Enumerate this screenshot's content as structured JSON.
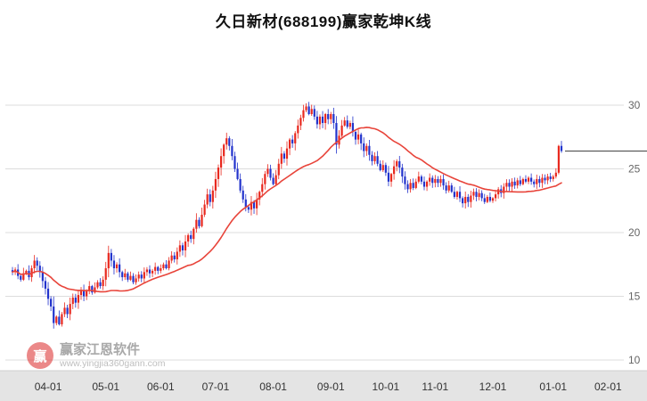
{
  "title": "久日新材(688199)赢家乾坤K线",
  "watermark": {
    "logo_char": "赢",
    "brand": "赢家江恩软件",
    "url": "www.yingjia360gann.com"
  },
  "colors": {
    "up": "#e8281e",
    "down": "#2233cc",
    "ma": "#e8443a",
    "grid": "#dcdcdc",
    "axis_text": "#666666",
    "xlabel_text": "#333333",
    "price_line": "#444444",
    "strip_bg": "#e4e4e4",
    "strip_border": "#cfcfcf",
    "title_text": "#111111"
  },
  "chart_data": {
    "type": "candlestick",
    "symbol": "久日新材",
    "code": "688199",
    "legend_position": "none",
    "grid": "horizontal",
    "ma_period": 30,
    "last_price": 26.4,
    "ylim": [
      10,
      32
    ],
    "y_ticks": [
      10,
      15,
      20,
      25,
      30
    ],
    "x_ticks": [
      {
        "label": "04-01",
        "i": 13
      },
      {
        "label": "05-01",
        "i": 34
      },
      {
        "label": "06-01",
        "i": 54
      },
      {
        "label": "07-01",
        "i": 74
      },
      {
        "label": "08-01",
        "i": 95
      },
      {
        "label": "09-01",
        "i": 116
      },
      {
        "label": "10-01",
        "i": 136
      },
      {
        "label": "11-01",
        "i": 154
      },
      {
        "label": "12-01",
        "i": 175
      },
      {
        "label": "01-01",
        "i": 197
      },
      {
        "label": "02-01",
        "i": 217
      }
    ],
    "closes": [
      16.9,
      17.1,
      16.6,
      16.3,
      16.8,
      17.0,
      16.5,
      17.2,
      17.8,
      17.4,
      16.9,
      16.2,
      15.6,
      14.8,
      14.2,
      12.9,
      13.4,
      12.8,
      13.6,
      14.1,
      13.6,
      14.4,
      14.9,
      14.5,
      15.1,
      15.5,
      15.0,
      15.4,
      15.8,
      15.3,
      15.7,
      16.1,
      15.8,
      16.3,
      17.2,
      18.4,
      17.8,
      17.2,
      17.5,
      16.9,
      16.5,
      16.8,
      16.3,
      16.6,
      16.1,
      16.4,
      16.7,
      16.4,
      16.9,
      17.1,
      16.8,
      17.0,
      17.3,
      17.0,
      17.2,
      17.5,
      17.2,
      17.8,
      18.2,
      17.9,
      18.5,
      19.0,
      18.6,
      19.3,
      19.8,
      19.5,
      20.3,
      21.0,
      20.5,
      21.4,
      22.2,
      23.0,
      22.4,
      23.3,
      24.2,
      25.1,
      26.0,
      26.9,
      27.4,
      26.8,
      26.0,
      25.0,
      24.2,
      23.3,
      22.6,
      22.0,
      21.8,
      22.4,
      21.9,
      22.6,
      23.2,
      23.8,
      24.6,
      25.0,
      24.3,
      23.8,
      24.5,
      25.4,
      26.2,
      25.8,
      26.6,
      27.3,
      27.0,
      27.8,
      28.4,
      29.0,
      29.6,
      29.9,
      29.3,
      29.7,
      29.1,
      28.5,
      29.1,
      28.6,
      29.3,
      28.9,
      29.3,
      28.6,
      26.9,
      27.6,
      28.4,
      28.8,
      28.3,
      28.6,
      27.9,
      27.3,
      27.7,
      27.0,
      26.4,
      26.8,
      26.1,
      25.6,
      26.0,
      25.4,
      24.9,
      25.3,
      24.7,
      24.0,
      24.6,
      25.2,
      25.6,
      25.1,
      24.4,
      23.8,
      23.4,
      23.9,
      23.5,
      24.0,
      24.4,
      24.0,
      23.6,
      24.0,
      24.3,
      23.9,
      24.2,
      23.9,
      24.2,
      23.7,
      23.3,
      23.7,
      23.2,
      22.8,
      23.2,
      22.7,
      22.3,
      22.8,
      22.4,
      22.9,
      23.2,
      22.8,
      23.1,
      22.7,
      22.4,
      22.8,
      22.5,
      22.7,
      23.0,
      23.4,
      23.1,
      23.6,
      23.9,
      23.6,
      24.0,
      23.7,
      24.1,
      23.8,
      24.2,
      24.0,
      24.3,
      24.0,
      23.8,
      24.2,
      23.9,
      24.3,
      24.1,
      24.4,
      24.2,
      24.4,
      24.7,
      26.8,
      26.4
    ]
  }
}
